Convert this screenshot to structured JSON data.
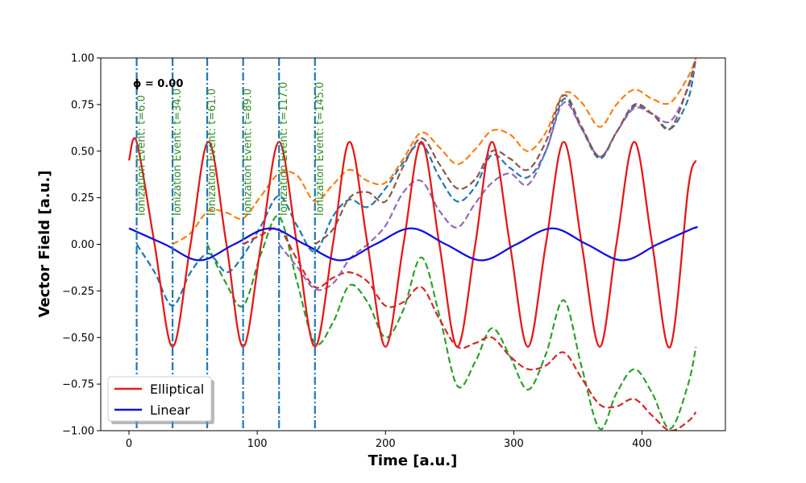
{
  "chart_data": {
    "type": "line",
    "xlabel": "Time [a.u.]",
    "ylabel": "Vector Field [a.u.]",
    "xlim": [
      -22,
      465
    ],
    "ylim": [
      -1.0,
      1.0
    ],
    "xticks": [
      0,
      100,
      200,
      300,
      400
    ],
    "xtick_labels": [
      "0",
      "100",
      "200",
      "300",
      "400"
    ],
    "yticks": [
      -1.0,
      -0.75,
      -0.5,
      -0.25,
      0.0,
      0.25,
      0.5,
      0.75,
      1.0
    ],
    "ytick_labels": [
      "−1.00",
      "−0.75",
      "−0.50",
      "−0.25",
      "0.00",
      "0.25",
      "0.50",
      "0.75",
      "1.00"
    ],
    "annotation": "ϕ = 0.00",
    "legend": {
      "location": "lower-left",
      "entries": [
        {
          "label": "Elliptical",
          "color": "#e41a1a"
        },
        {
          "label": "Linear",
          "color": "#1010e0"
        }
      ]
    },
    "series": [
      {
        "name": "Elliptical",
        "style": "solid",
        "color": "#e41a1a",
        "x": [
          0,
          6,
          20,
          34,
          48,
          62,
          76,
          89,
          103,
          117,
          131,
          145,
          159,
          172,
          186,
          200,
          214,
          228,
          242,
          256,
          270,
          283,
          297,
          311,
          325,
          339,
          353,
          367,
          380,
          394,
          408,
          422,
          436,
          442
        ],
        "y": [
          0.45,
          0.55,
          0.0,
          -0.55,
          0.0,
          0.55,
          0.0,
          -0.55,
          0.0,
          0.55,
          0.0,
          -0.55,
          0.0,
          0.55,
          0.0,
          -0.55,
          0.0,
          0.55,
          0.0,
          -0.55,
          0.0,
          0.55,
          0.0,
          -0.55,
          0.0,
          0.55,
          0.0,
          -0.55,
          0.0,
          0.55,
          0.0,
          -0.55,
          0.3,
          0.45
        ]
      },
      {
        "name": "Linear",
        "style": "solid",
        "color": "#1010e0",
        "x": [
          0,
          28,
          55,
          82,
          110,
          137,
          165,
          192,
          220,
          247,
          275,
          302,
          330,
          357,
          385,
          412,
          440,
          442
        ],
        "y": [
          0.086,
          0.0,
          -0.086,
          0.0,
          0.086,
          0.0,
          -0.086,
          0.0,
          0.086,
          0.0,
          -0.086,
          0.0,
          0.086,
          0.0,
          -0.086,
          0.0,
          0.086,
          0.086
        ]
      },
      {
        "name": "t=6.0",
        "style": "dashed",
        "color": "#1f77b4",
        "x": [
          6,
          20,
          34,
          48,
          62,
          76,
          89,
          103,
          117,
          131,
          145,
          159,
          172,
          186,
          200,
          214,
          228,
          242,
          256,
          270,
          283,
          297,
          311,
          325,
          339,
          353,
          367,
          380,
          394,
          408,
          422,
          436,
          442
        ],
        "y": [
          0.0,
          -0.15,
          -0.33,
          -0.15,
          -0.05,
          -0.15,
          -0.06,
          0.1,
          0.26,
          0.1,
          -0.04,
          0.15,
          0.24,
          0.2,
          0.3,
          0.44,
          0.54,
          0.36,
          0.23,
          0.31,
          0.48,
          0.41,
          0.36,
          0.5,
          0.78,
          0.62,
          0.46,
          0.6,
          0.74,
          0.7,
          0.62,
          0.78,
          1.0
        ]
      },
      {
        "name": "t=34.0",
        "style": "dashed",
        "color": "#ff7f0e",
        "x": [
          34,
          48,
          62,
          76,
          89,
          103,
          117,
          131,
          145,
          159,
          172,
          186,
          200,
          214,
          228,
          242,
          256,
          270,
          283,
          297,
          311,
          325,
          339,
          353,
          367,
          380,
          394,
          408,
          422,
          436,
          442
        ],
        "y": [
          0.0,
          0.06,
          0.18,
          0.17,
          0.14,
          0.26,
          0.38,
          0.37,
          0.23,
          0.32,
          0.4,
          0.34,
          0.33,
          0.46,
          0.6,
          0.52,
          0.43,
          0.51,
          0.61,
          0.59,
          0.5,
          0.6,
          0.81,
          0.76,
          0.63,
          0.75,
          0.83,
          0.78,
          0.76,
          0.9,
          1.0
        ]
      },
      {
        "name": "t=61.0",
        "style": "dashed",
        "color": "#2ca02c",
        "x": [
          61,
          75,
          89,
          103,
          117,
          131,
          145,
          159,
          172,
          186,
          200,
          214,
          228,
          242,
          256,
          270,
          283,
          297,
          311,
          325,
          339,
          353,
          367,
          380,
          394,
          408,
          422,
          436,
          442
        ],
        "y": [
          0.0,
          -0.2,
          -0.33,
          -0.05,
          0.15,
          -0.2,
          -0.53,
          -0.42,
          -0.22,
          -0.31,
          -0.5,
          -0.35,
          -0.07,
          -0.38,
          -0.76,
          -0.63,
          -0.45,
          -0.6,
          -0.78,
          -0.59,
          -0.3,
          -0.66,
          -0.99,
          -0.8,
          -0.67,
          -0.8,
          -0.99,
          -0.75,
          -0.55
        ]
      },
      {
        "name": "t=89.0",
        "style": "dashed",
        "color": "#d62728",
        "x": [
          89,
          103,
          117,
          131,
          145,
          159,
          172,
          186,
          200,
          214,
          228,
          242,
          256,
          270,
          283,
          297,
          311,
          325,
          339,
          353,
          367,
          380,
          394,
          408,
          422,
          436,
          442
        ],
        "y": [
          0.0,
          0.05,
          0.08,
          -0.08,
          -0.23,
          -0.18,
          -0.15,
          -0.2,
          -0.33,
          -0.31,
          -0.23,
          -0.4,
          -0.55,
          -0.53,
          -0.5,
          -0.6,
          -0.67,
          -0.65,
          -0.58,
          -0.72,
          -0.86,
          -0.87,
          -0.83,
          -0.92,
          -1.0,
          -0.95,
          -0.9
        ]
      },
      {
        "name": "t=117.0",
        "style": "dashed",
        "color": "#9467bd",
        "x": [
          117,
          131,
          145,
          159,
          172,
          186,
          200,
          214,
          228,
          242,
          256,
          270,
          283,
          297,
          311,
          325,
          339,
          353,
          367,
          380,
          394,
          408,
          422,
          436,
          442
        ],
        "y": [
          0.0,
          -0.12,
          -0.24,
          -0.21,
          -0.08,
          -0.0,
          0.1,
          0.28,
          0.34,
          0.18,
          0.09,
          0.22,
          0.33,
          0.38,
          0.32,
          0.5,
          0.76,
          0.62,
          0.47,
          0.6,
          0.73,
          0.7,
          0.66,
          0.84,
          1.0
        ]
      },
      {
        "name": "t=145.0",
        "style": "dashed",
        "color": "#8c564b",
        "x": [
          145,
          159,
          172,
          186,
          200,
          214,
          228,
          242,
          256,
          270,
          283,
          297,
          311,
          325,
          339,
          353,
          367,
          380,
          394,
          408,
          422,
          436,
          442
        ],
        "y": [
          0.0,
          0.08,
          0.25,
          0.28,
          0.23,
          0.42,
          0.57,
          0.43,
          0.3,
          0.35,
          0.5,
          0.46,
          0.4,
          0.55,
          0.8,
          0.63,
          0.47,
          0.6,
          0.75,
          0.7,
          0.62,
          0.85,
          1.0
        ]
      }
    ],
    "ionization_events": [
      {
        "t": 6.0,
        "label": "Ionization Event: t=6.0"
      },
      {
        "t": 34.0,
        "label": "Ionization Event: t=34.0"
      },
      {
        "t": 61.0,
        "label": "Ionization Event: t=61.0"
      },
      {
        "t": 89.0,
        "label": "Ionization Event: t=89.0"
      },
      {
        "t": 117.0,
        "label": "Ionization Event: t=117.0"
      },
      {
        "t": 145.0,
        "label": "Ionization Event: t=145.0"
      }
    ],
    "event_line_color": "#1f77b4"
  }
}
